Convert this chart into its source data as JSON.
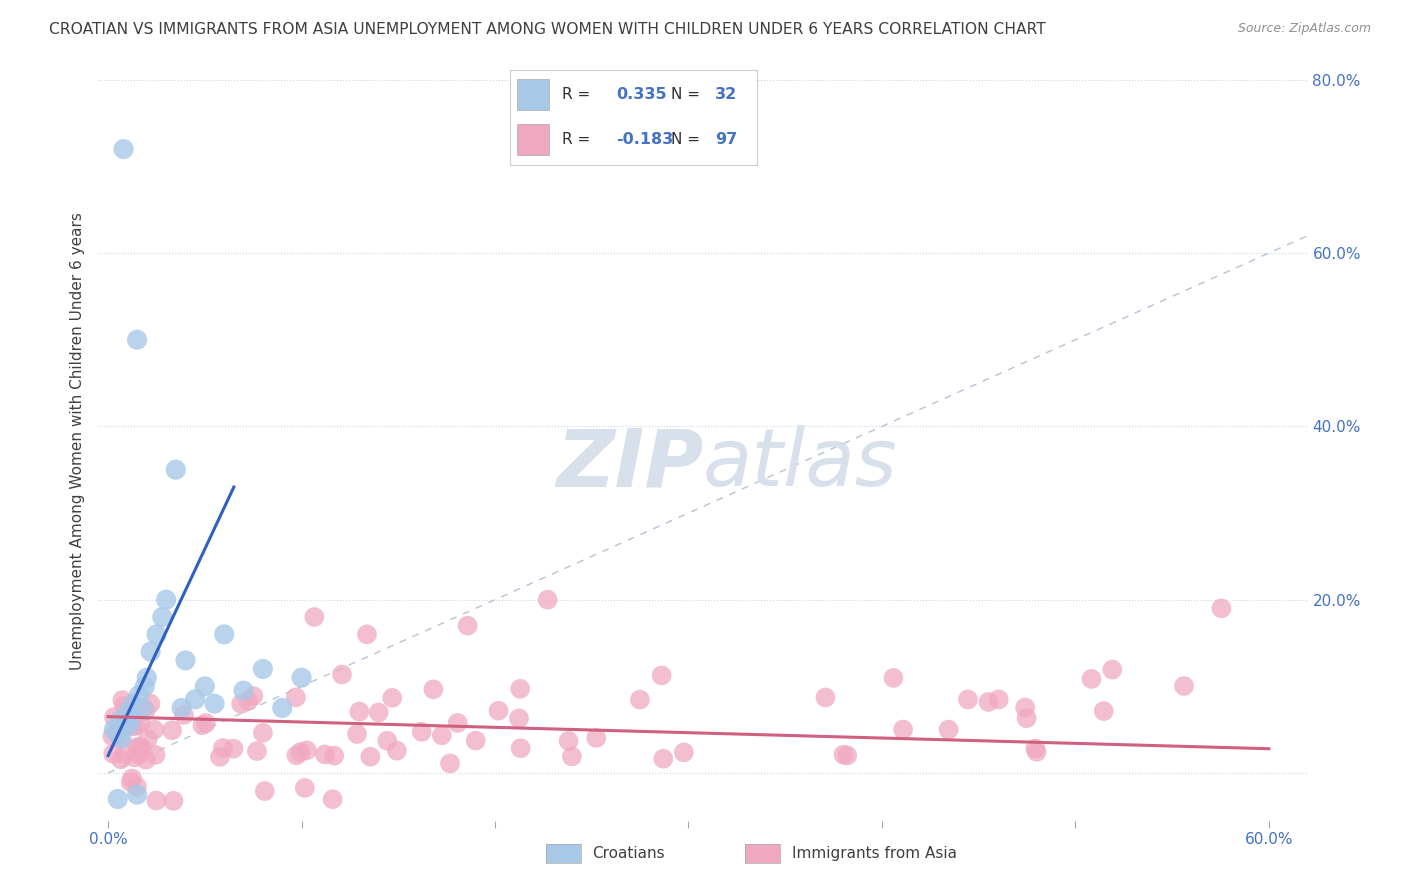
{
  "title": "CROATIAN VS IMMIGRANTS FROM ASIA UNEMPLOYMENT AMONG WOMEN WITH CHILDREN UNDER 6 YEARS CORRELATION CHART",
  "source": "Source: ZipAtlas.com",
  "ylabel": "Unemployment Among Women with Children Under 6 years",
  "R_croatians": 0.335,
  "N_croatians": 32,
  "R_asia": -0.183,
  "N_asia": 97,
  "color_croatians": "#a8c8e8",
  "color_asia": "#f0a8c0",
  "line_color_croatians": "#3060c0",
  "line_color_asia": "#d06080",
  "diag_color": "#b0bcd0",
  "background_color": "#ffffff",
  "title_color": "#404040",
  "source_color": "#909090",
  "watermark_color": "#d8e0ec",
  "axis_label_color": "#4472c4",
  "legend_croatians": "Croatians",
  "legend_asia": "Immigrants from Asia",
  "xlim": [
    -0.005,
    0.62
  ],
  "ylim": [
    -0.055,
    0.82
  ],
  "yticks": [
    0.0,
    0.2,
    0.4,
    0.6,
    0.8
  ],
  "xticks": [
    0.0,
    0.1,
    0.2,
    0.3,
    0.4,
    0.5,
    0.6
  ]
}
